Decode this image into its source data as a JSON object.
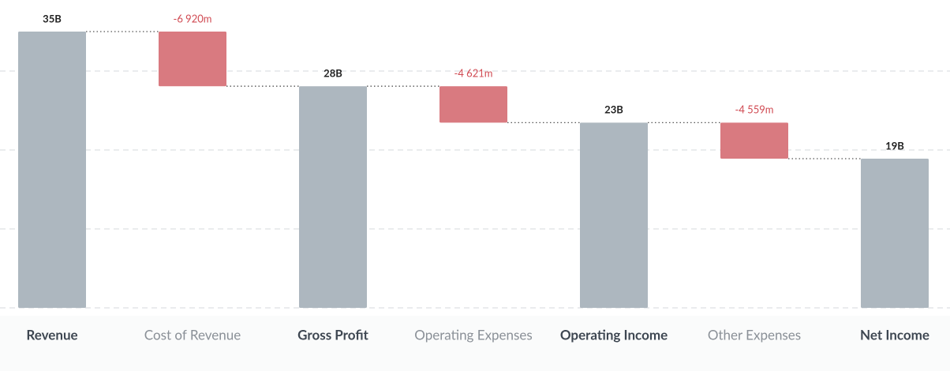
{
  "chart_data": {
    "type": "waterfall",
    "categories": [
      "Revenue",
      "Cost of Revenue",
      "Gross Profit",
      "Operating Expenses",
      "Operating Income",
      "Other Expenses",
      "Net Income"
    ],
    "values": [
      35000,
      -6920,
      28080,
      -4621,
      23459,
      -4559,
      18900
    ],
    "value_labels": [
      "35B",
      "-6 920m",
      "28B",
      "-4 621m",
      "23B",
      "-4 559m",
      "19B"
    ],
    "total_color": "#adb7bf",
    "decrease_color": "#d97a80",
    "ylim": [
      0,
      35000
    ],
    "yticks": [
      0,
      10000,
      20000,
      30000
    ],
    "grid": true
  }
}
